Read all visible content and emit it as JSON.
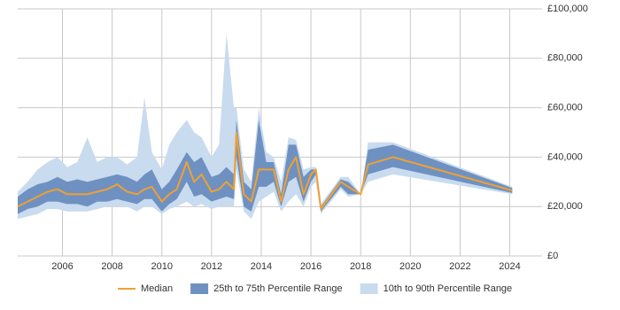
{
  "chart_data": {
    "type": "percentile-band",
    "x": [
      2004.2,
      2004.6,
      2005.0,
      2005.4,
      2005.8,
      2006.2,
      2006.6,
      2007.0,
      2007.4,
      2007.8,
      2008.2,
      2008.6,
      2009.0,
      2009.3,
      2009.6,
      2010.0,
      2010.3,
      2010.6,
      2011.0,
      2011.3,
      2011.6,
      2012.0,
      2012.3,
      2012.6,
      2012.9,
      2013.0,
      2013.3,
      2013.6,
      2013.9,
      2014.2,
      2014.5,
      2014.8,
      2015.1,
      2015.4,
      2015.7,
      2016.0,
      2016.2,
      2016.4,
      2017.2,
      2017.5,
      2018.0,
      2018.3,
      2019.3,
      2024.1
    ],
    "series": [
      {
        "name": "Median",
        "color": "#f0a030",
        "values": [
          20000,
          22000,
          24000,
          26000,
          27000,
          25000,
          25000,
          25000,
          26000,
          27000,
          29000,
          26000,
          25000,
          27000,
          28000,
          22000,
          25000,
          27000,
          38000,
          30000,
          33000,
          26000,
          27000,
          30000,
          27000,
          50000,
          25000,
          22000,
          35000,
          35000,
          35000,
          22000,
          35000,
          40000,
          25000,
          33000,
          35000,
          19000,
          30000,
          28000,
          25000,
          37000,
          40000,
          26500
        ]
      }
    ],
    "bands": [
      {
        "name": "10th to 90th Percentile Range",
        "color": "#c9dbee",
        "low": [
          15000,
          16000,
          17000,
          19000,
          19000,
          18000,
          18000,
          18000,
          19000,
          20000,
          20000,
          20000,
          18000,
          20000,
          20000,
          17000,
          19000,
          20000,
          22000,
          20000,
          21000,
          19000,
          20000,
          20000,
          20000,
          35000,
          18000,
          15000,
          22000,
          24000,
          26000,
          18000,
          22000,
          25000,
          20000,
          28000,
          30000,
          17000,
          27000,
          24000,
          25000,
          30000,
          33000,
          25000
        ],
        "high": [
          26000,
          30000,
          35000,
          38000,
          40000,
          36000,
          38000,
          48000,
          38000,
          40000,
          40000,
          37000,
          40000,
          64000,
          42000,
          35000,
          45000,
          50000,
          55000,
          50000,
          48000,
          40000,
          45000,
          90000,
          60000,
          60000,
          35000,
          30000,
          60000,
          42000,
          40000,
          30000,
          48000,
          47000,
          35000,
          36000,
          36000,
          21000,
          32000,
          32000,
          25000,
          46000,
          46000,
          28000
        ]
      },
      {
        "name": "25th to 75th Percentile Range",
        "color": "#6e91c2",
        "low": [
          17000,
          19000,
          20000,
          22000,
          22000,
          21000,
          21000,
          20000,
          22000,
          22000,
          23000,
          22000,
          21000,
          23000,
          23000,
          18000,
          21000,
          23000,
          30000,
          24000,
          25000,
          22000,
          23000,
          24000,
          23000,
          40000,
          20000,
          18000,
          28000,
          28000,
          30000,
          20000,
          30000,
          32000,
          22000,
          30000,
          33000,
          18000,
          28000,
          25000,
          25000,
          33000,
          36000,
          25500
        ],
        "high": [
          24000,
          27000,
          29000,
          30000,
          32000,
          30000,
          31000,
          30000,
          31000,
          32000,
          33000,
          32000,
          30000,
          33000,
          35000,
          27000,
          30000,
          35000,
          42000,
          38000,
          40000,
          32000,
          33000,
          36000,
          33000,
          55000,
          30000,
          27000,
          55000,
          38000,
          38000,
          25000,
          45000,
          45000,
          32000,
          35000,
          35000,
          20000,
          31000,
          30000,
          25000,
          43000,
          45000,
          27500
        ]
      }
    ],
    "xlim": [
      2004.2,
      2025.3
    ],
    "xticks": [
      2006,
      2008,
      2010,
      2012,
      2014,
      2016,
      2018,
      2020,
      2022,
      2024
    ],
    "ylim": [
      0,
      100000
    ],
    "yticks": [
      {
        "value": 0,
        "label": "£0"
      },
      {
        "value": 20000,
        "label": "£20,000"
      },
      {
        "value": 40000,
        "label": "£40,000"
      },
      {
        "value": 60000,
        "label": "£60,000"
      },
      {
        "value": 80000,
        "label": "£80,000"
      },
      {
        "value": 100000,
        "label": "£100,000"
      }
    ],
    "grid": true
  }
}
